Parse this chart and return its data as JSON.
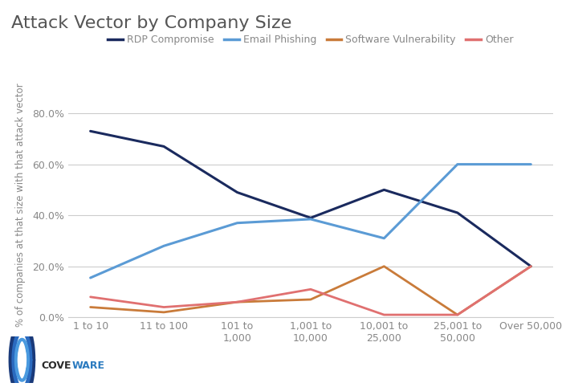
{
  "title": "Attack Vector by Company Size",
  "ylabel": "% of companies at that size with that attack vector",
  "categories": [
    "1 to 10",
    "11 to 100",
    "101 to\n1,000",
    "1,001 to\n10,000",
    "10,001 to\n25,000",
    "25,001 to\n50,000",
    "Over 50,000"
  ],
  "series": {
    "RDP Compromise": {
      "values": [
        0.73,
        0.67,
        0.49,
        0.39,
        0.5,
        0.41,
        0.2
      ],
      "color": "#1a2a5e",
      "linewidth": 2.2
    },
    "Email Phishing": {
      "values": [
        0.155,
        0.28,
        0.37,
        0.385,
        0.31,
        0.6,
        0.6
      ],
      "color": "#5b9bd5",
      "linewidth": 2.2
    },
    "Software Vulnerability": {
      "values": [
        0.04,
        0.02,
        0.06,
        0.07,
        0.2,
        0.01,
        0.2
      ],
      "color": "#c97b3a",
      "linewidth": 2.0
    },
    "Other": {
      "values": [
        0.08,
        0.04,
        0.06,
        0.11,
        0.01,
        0.01,
        0.2
      ],
      "color": "#e07070",
      "linewidth": 2.0
    }
  },
  "ylim": [
    0,
    0.88
  ],
  "yticks": [
    0.0,
    0.2,
    0.4,
    0.6,
    0.8
  ],
  "ytick_labels": [
    "0.0%",
    "20.0%",
    "40.0%",
    "60.0%",
    "80.0%"
  ],
  "background_color": "#ffffff",
  "grid_color": "#cccccc",
  "title_color": "#555555",
  "axis_label_color": "#888888",
  "tick_label_color": "#888888",
  "logo_text_cove": "COVE",
  "logo_text_ware": "WARE"
}
